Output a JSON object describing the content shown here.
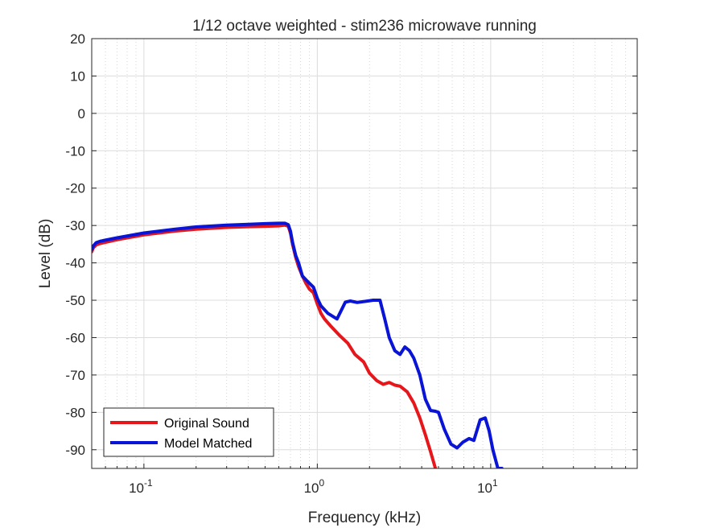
{
  "chart_data": {
    "type": "line",
    "title": "1/12 octave weighted - stim236 microwave running",
    "xlabel": "Frequency (kHz)",
    "ylabel": "Level (dB)",
    "xscale": "log",
    "xlim": [
      0.05,
      70
    ],
    "ylim": [
      -95,
      20
    ],
    "grid": true,
    "legend_location": "bottom-left",
    "x_ticks": [
      {
        "value": 0.1,
        "base": "10",
        "exp": "-1"
      },
      {
        "value": 1,
        "base": "10",
        "exp": "0"
      },
      {
        "value": 10,
        "base": "10",
        "exp": "1"
      }
    ],
    "y_ticks": [
      20,
      10,
      0,
      -10,
      -20,
      -30,
      -40,
      -50,
      -60,
      -70,
      -80,
      -90
    ],
    "y_tick_labels": [
      "20",
      "10",
      "0",
      "-10",
      "-20",
      "-30",
      "-40",
      "-50",
      "-60",
      "-70",
      "-80",
      "-90"
    ],
    "series": [
      {
        "name": "Original Sound",
        "color": "#e6161b",
        "x": [
          0.05,
          0.051,
          0.053,
          0.056,
          0.07,
          0.1,
          0.15,
          0.2,
          0.3,
          0.4,
          0.5,
          0.6,
          0.65,
          0.68,
          0.7,
          0.72,
          0.75,
          0.78,
          0.82,
          0.86,
          0.9,
          0.95,
          1.0,
          1.05,
          1.1,
          1.2,
          1.35,
          1.5,
          1.65,
          1.85,
          2.0,
          2.2,
          2.4,
          2.6,
          2.8,
          3.0,
          3.3,
          3.6,
          3.9,
          4.2,
          4.5,
          4.8
        ],
        "y": [
          -37,
          -36,
          -35.2,
          -34.8,
          -33.8,
          -32.5,
          -31.5,
          -31,
          -30.5,
          -30.3,
          -30.2,
          -30.1,
          -29.9,
          -30.2,
          -32,
          -35,
          -38.5,
          -41,
          -43.5,
          -45.5,
          -47,
          -48,
          -51,
          -53.5,
          -55,
          -57,
          -59.5,
          -61.5,
          -64.5,
          -66.5,
          -69.5,
          -71.5,
          -72.5,
          -72,
          -72.7,
          -73,
          -74.5,
          -77.5,
          -81.5,
          -86,
          -90.5,
          -95
        ]
      },
      {
        "name": "Model Matched",
        "color": "#0a14d6",
        "x": [
          0.05,
          0.051,
          0.053,
          0.056,
          0.07,
          0.1,
          0.15,
          0.2,
          0.3,
          0.4,
          0.5,
          0.6,
          0.65,
          0.68,
          0.7,
          0.72,
          0.75,
          0.78,
          0.82,
          0.88,
          0.95,
          1.0,
          1.05,
          1.15,
          1.3,
          1.45,
          1.55,
          1.7,
          1.9,
          2.1,
          2.3,
          2.45,
          2.6,
          2.8,
          3.0,
          3.2,
          3.4,
          3.6,
          3.9,
          4.2,
          4.5,
          4.8,
          5.0,
          5.4,
          5.9,
          6.4,
          6.9,
          7.5,
          8.0,
          8.7,
          9.3,
          9.8,
          10.3,
          11.0,
          11.6
        ],
        "y": [
          -36.5,
          -35.5,
          -34.6,
          -34.2,
          -33.3,
          -32,
          -31,
          -30.4,
          -29.9,
          -29.7,
          -29.5,
          -29.4,
          -29.4,
          -29.8,
          -31.5,
          -34.5,
          -38,
          -40,
          -43.5,
          -45,
          -46.5,
          -49.5,
          -51.5,
          -53.5,
          -55,
          -50.5,
          -50.2,
          -50.6,
          -50.3,
          -50,
          -50,
          -55,
          -60,
          -63.5,
          -64.5,
          -62.5,
          -63.5,
          -65.5,
          -70,
          -76.5,
          -79.5,
          -79.7,
          -80,
          -84.5,
          -88.5,
          -89.5,
          -88,
          -87,
          -87.5,
          -82,
          -81.5,
          -85,
          -90,
          -95,
          -95
        ]
      }
    ]
  }
}
